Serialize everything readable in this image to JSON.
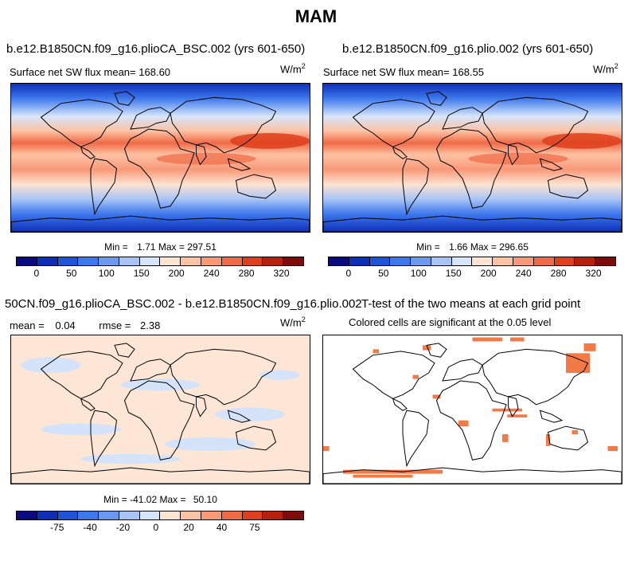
{
  "title": "MAM",
  "palette": {
    "abs": [
      "#0a0a82",
      "#0d2fb8",
      "#1f54d9",
      "#3d78ec",
      "#6c99f0",
      "#a8c4f7",
      "#d7e5fb",
      "#fde3d2",
      "#fcc2a4",
      "#f99978",
      "#f06a45",
      "#de3f1c",
      "#b8200e",
      "#7d0c0a"
    ],
    "diff": [
      "#0a0a82",
      "#0d2fb8",
      "#1f54d9",
      "#3d78ec",
      "#6c99f0",
      "#a8c4f7",
      "#d7e5fb",
      "#fde3d2",
      "#fcc2a4",
      "#f99978",
      "#f06a45",
      "#de3f1c",
      "#b8200e",
      "#7d0c0a"
    ],
    "signif": "#f47a45",
    "diff_bg": "#fde6d6",
    "diff_blue": "#d4e3fa"
  },
  "panels": {
    "p1": {
      "case": "b.e12.B1850CN.f09_g16.plioCA_BSC.002 (yrs 601-650)",
      "var_label": "Surface net SW flux",
      "mean_label": "mean=",
      "mean": "168.60",
      "units": "W/m",
      "units_exp": "2",
      "min_label": "Min =",
      "min": "1.71",
      "max_label": "Max =",
      "max": "297.51",
      "ticks": [
        "0",
        "50",
        "100",
        "150",
        "200",
        "240",
        "280",
        "320"
      ]
    },
    "p2": {
      "case": "b.e12.B1850CN.f09_g16.plio.002 (yrs 601-650)",
      "var_label": "Surface net SW flux",
      "mean_label": "mean=",
      "mean": "168.55",
      "units": "W/m",
      "units_exp": "2",
      "min_label": "Min =",
      "min": "1.66",
      "max_label": "Max =",
      "max": "296.65",
      "ticks": [
        "0",
        "50",
        "100",
        "150",
        "200",
        "240",
        "280",
        "320"
      ]
    },
    "p3": {
      "case": "50CN.f09_g16.plioCA_BSC.002 - b.e12.B1850CN.f09_g16.plio.002",
      "mean_label": "mean =",
      "mean": "0.04",
      "rmse_label": "rmse =",
      "rmse": "2.38",
      "units": "W/m",
      "units_exp": "2",
      "min_label": "Min =",
      "min": "-41.02",
      "max_label": "Max =",
      "max": "50.10",
      "ticks": [
        "-75",
        "-40",
        "-20",
        "0",
        "20",
        "40",
        "75"
      ]
    },
    "p4": {
      "case": "T-test of the two means at each grid point",
      "subtitle": "Colored cells are significant at the 0.05 level"
    }
  },
  "chart_data": [
    {
      "type": "heatmap",
      "title": "b.e12.B1850CN.f09_g16.plioCA_BSC.002 (yrs 601-650)",
      "variable": "Surface net SW flux",
      "units": "W/m^2",
      "mean": 168.6,
      "min": 1.71,
      "max": 297.51,
      "contour_levels": [
        0,
        25,
        50,
        75,
        100,
        125,
        150,
        175,
        200,
        220,
        240,
        260,
        280,
        300,
        320
      ],
      "colorbar_tick_labels": [
        0,
        50,
        100,
        150,
        200,
        240,
        280,
        320
      ]
    },
    {
      "type": "heatmap",
      "title": "b.e12.B1850CN.f09_g16.plio.002 (yrs 601-650)",
      "variable": "Surface net SW flux",
      "units": "W/m^2",
      "mean": 168.55,
      "min": 1.66,
      "max": 296.65,
      "contour_levels": [
        0,
        25,
        50,
        75,
        100,
        125,
        150,
        175,
        200,
        220,
        240,
        260,
        280,
        300,
        320
      ],
      "colorbar_tick_labels": [
        0,
        50,
        100,
        150,
        200,
        240,
        280,
        320
      ]
    },
    {
      "type": "heatmap",
      "title": "50CN.f09_g16.plioCA_BSC.002 - b.e12.B1850CN.f09_g16.plio.002",
      "units": "W/m^2",
      "mean": 0.04,
      "rmse": 2.38,
      "min": -41.02,
      "max": 50.1,
      "colorbar_tick_labels": [
        -75,
        -40,
        -20,
        0,
        20,
        40,
        75
      ]
    },
    {
      "type": "heatmap",
      "title": "T-test of the two means at each grid point",
      "subtitle": "Colored cells are significant at the 0.05 level",
      "significance_level": 0.05
    }
  ]
}
